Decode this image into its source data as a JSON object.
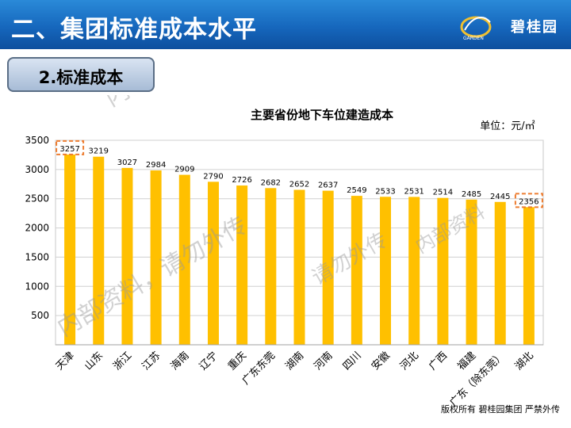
{
  "header": {
    "title": "二、集团标准成本水平",
    "logo_text": "碧桂园",
    "logo_small": "GARDEN"
  },
  "section": {
    "label": "2.标准成本"
  },
  "watermarks": [
    "内部资料，请勿外传",
    "内部资料，请勿外传",
    "内部资料",
    "请勿外传"
  ],
  "footer": {
    "text": "版权所有 碧桂园集团 严禁外传"
  },
  "colors": {
    "bar": "#FFC000",
    "highlight": "#ED7D31",
    "header": "#1667BD"
  },
  "chart_data": {
    "type": "bar",
    "title": "主要省份地下车位建造成本",
    "unit": "单位：元/㎡",
    "categories": [
      "天津",
      "山东",
      "浙江",
      "江苏",
      "海南",
      "辽宁",
      "重庆",
      "广东东莞",
      "湖南",
      "河南",
      "四川",
      "安徽",
      "河北",
      "广西",
      "福建",
      "广东（除东莞）",
      "湖北"
    ],
    "values": [
      3257,
      3219,
      3027,
      2984,
      2909,
      2790,
      2726,
      2682,
      2652,
      2637,
      2549,
      2533,
      2531,
      2514,
      2485,
      2445,
      2356
    ],
    "highlighted": [
      "天津",
      "湖北"
    ],
    "ylim": [
      0,
      3500
    ],
    "yticks": [
      500,
      1000,
      1500,
      2000,
      2500,
      3000,
      3500
    ],
    "grid": true,
    "legend": "none"
  }
}
